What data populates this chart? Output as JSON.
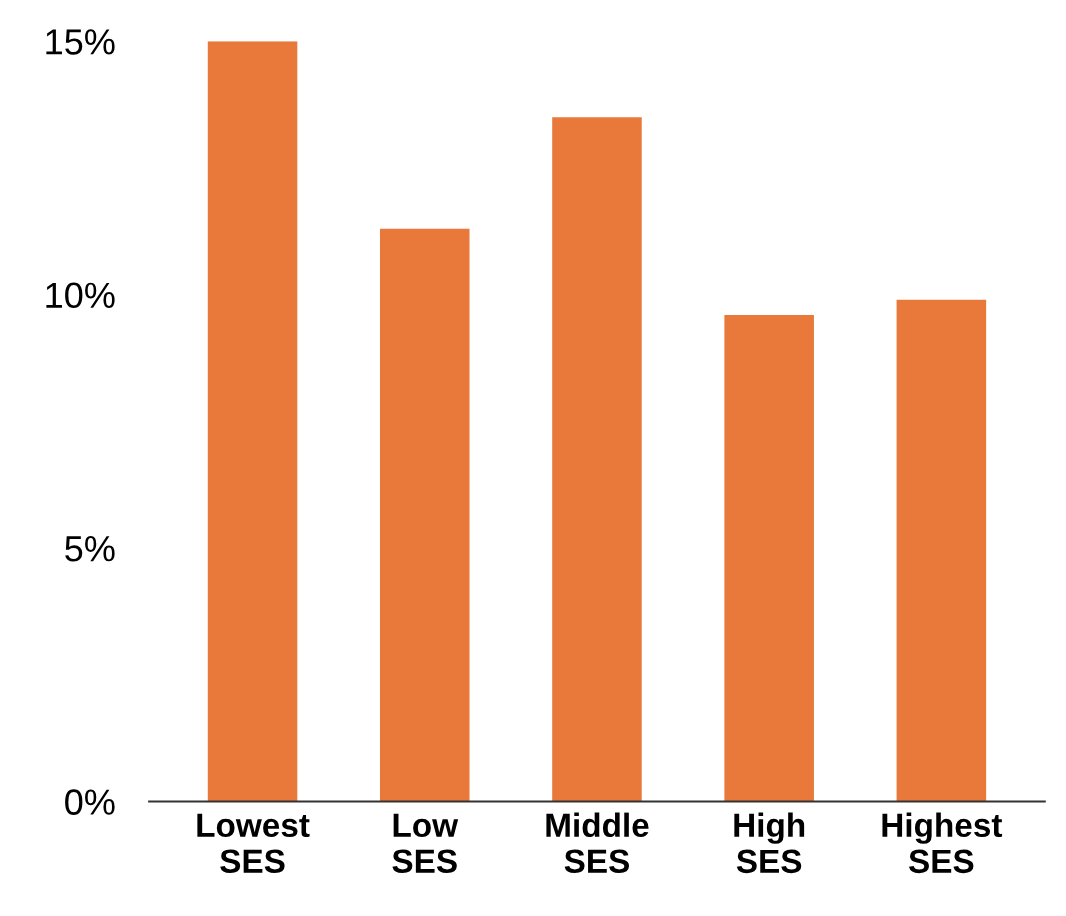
{
  "chart_data": {
    "type": "bar",
    "categories": [
      "Lowest\nSES",
      "Low\nSES",
      "Middle\nSES",
      "High\nSES",
      "Highest\nSES"
    ],
    "values": [
      15.0,
      11.3,
      13.5,
      9.6,
      9.9
    ],
    "color": "#e8793a",
    "ylim": [
      0,
      15
    ],
    "yticks": [
      {
        "value": 0,
        "label": "0%"
      },
      {
        "value": 5,
        "label": "5%"
      },
      {
        "value": 10,
        "label": "10%"
      },
      {
        "value": 15,
        "label": "15%"
      }
    ],
    "grid": false,
    "legend": false
  }
}
